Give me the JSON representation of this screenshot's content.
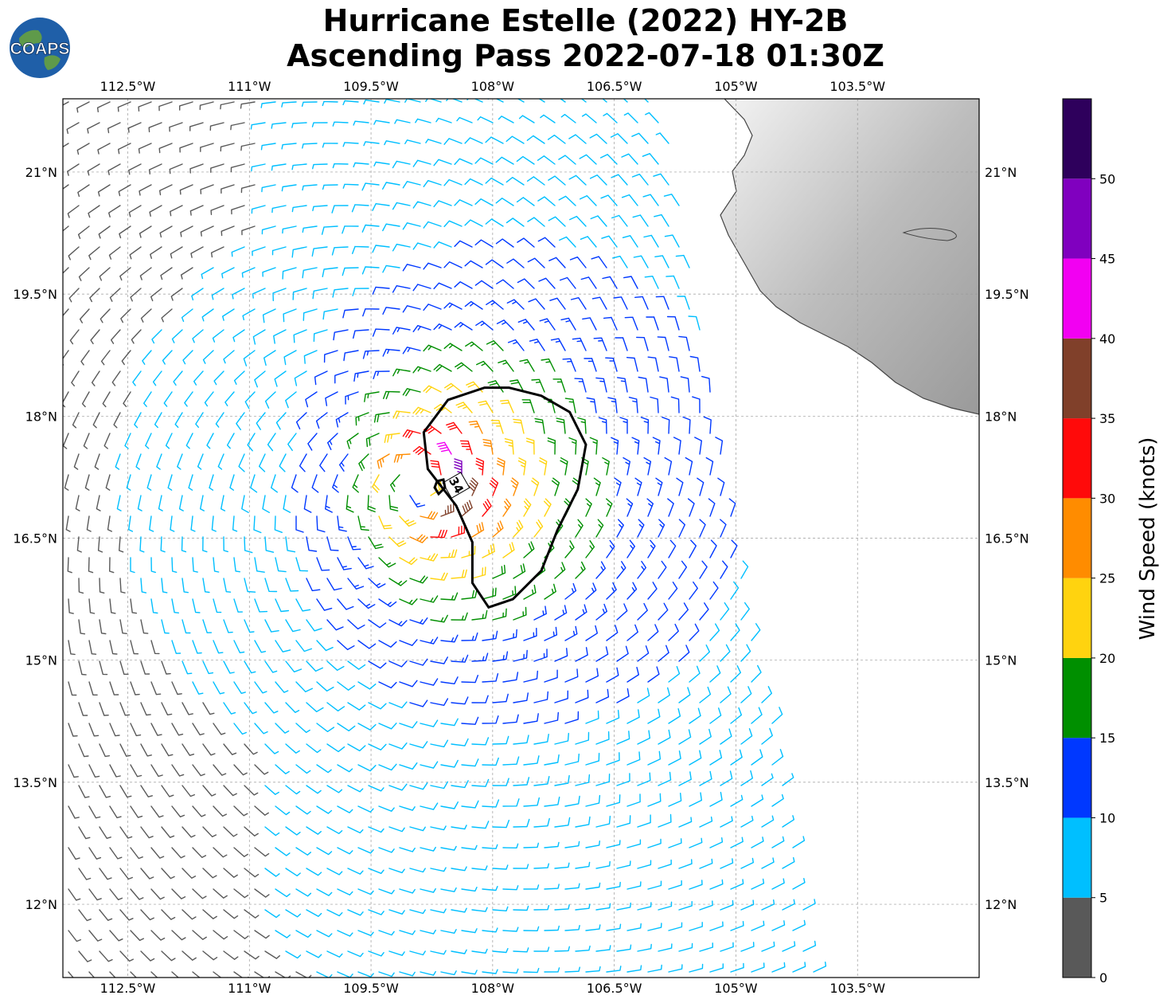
{
  "title": {
    "line1": "Hurricane Estelle (2022) HY-2B",
    "line2": "Ascending Pass 2022-07-18 01:30Z"
  },
  "logo": {
    "text": "COAPS",
    "icon": "globe-logo-icon"
  },
  "map": {
    "lon_range": [
      -113.3,
      -102.0
    ],
    "lat_range": [
      11.1,
      21.9
    ],
    "lon_ticks": [
      {
        "value": -112.5,
        "label": "112.5°W"
      },
      {
        "value": -111.0,
        "label": "111°W"
      },
      {
        "value": -109.5,
        "label": "109.5°W"
      },
      {
        "value": -108.0,
        "label": "108°W"
      },
      {
        "value": -106.5,
        "label": "106.5°W"
      },
      {
        "value": -105.0,
        "label": "105°W"
      },
      {
        "value": -103.5,
        "label": "103.5°W"
      }
    ],
    "lat_ticks": [
      {
        "value": 21.0,
        "label": "21°N"
      },
      {
        "value": 19.5,
        "label": "19.5°N"
      },
      {
        "value": 18.0,
        "label": "18°N"
      },
      {
        "value": 16.5,
        "label": "16.5°N"
      },
      {
        "value": 15.0,
        "label": "15°N"
      },
      {
        "value": 13.5,
        "label": "13.5°N"
      },
      {
        "value": 12.0,
        "label": "12°N"
      }
    ],
    "gridlines": true,
    "storm_center": {
      "lon": -108.9,
      "lat": 17.15
    },
    "contour_label": "34",
    "contour_34kt": [
      [
        -107.8,
        18.35
      ],
      [
        -107.4,
        18.25
      ],
      [
        -107.05,
        18.05
      ],
      [
        -106.85,
        17.65
      ],
      [
        -106.95,
        17.1
      ],
      [
        -107.2,
        16.6
      ],
      [
        -107.4,
        16.1
      ],
      [
        -107.75,
        15.75
      ],
      [
        -108.05,
        15.65
      ],
      [
        -108.25,
        15.95
      ],
      [
        -108.25,
        16.45
      ],
      [
        -108.45,
        16.9
      ],
      [
        -108.8,
        17.35
      ],
      [
        -108.85,
        17.8
      ],
      [
        -108.55,
        18.2
      ],
      [
        -108.1,
        18.35
      ],
      [
        -107.8,
        18.35
      ]
    ]
  },
  "colorbar": {
    "label": "Wind Speed (knots)",
    "ticks": [
      "0",
      "5",
      "10",
      "15",
      "20",
      "25",
      "30",
      "35",
      "40",
      "45",
      "50"
    ],
    "bins": [
      {
        "range": [
          0,
          5
        ],
        "color": "#595959"
      },
      {
        "range": [
          5,
          10
        ],
        "color": "#00bfff"
      },
      {
        "range": [
          10,
          15
        ],
        "color": "#0038ff"
      },
      {
        "range": [
          15,
          20
        ],
        "color": "#008f00"
      },
      {
        "range": [
          20,
          25
        ],
        "color": "#ffd30f"
      },
      {
        "range": [
          25,
          30
        ],
        "color": "#ff8c00"
      },
      {
        "range": [
          30,
          35
        ],
        "color": "#ff0a0a"
      },
      {
        "range": [
          35,
          40
        ],
        "color": "#80402a"
      },
      {
        "range": [
          40,
          45
        ],
        "color": "#f200f2"
      },
      {
        "range": [
          45,
          50
        ],
        "color": "#8000bf"
      },
      {
        "range": [
          50,
          55
        ],
        "color": "#2e005c"
      }
    ]
  }
}
